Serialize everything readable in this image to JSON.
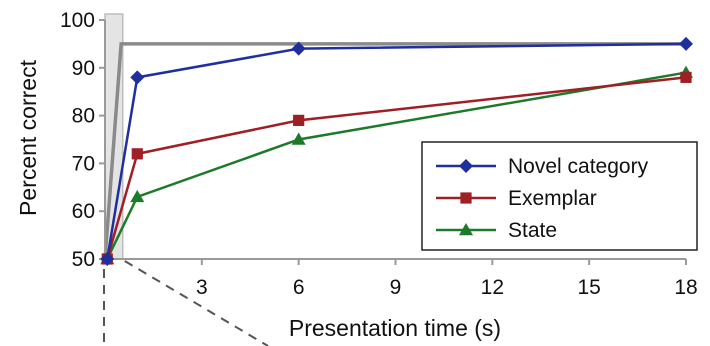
{
  "chart_data": {
    "type": "line",
    "xlabel": "Presentation time (s)",
    "ylabel": "Percent correct",
    "xlim": [
      0,
      18
    ],
    "ylim": [
      50,
      100
    ],
    "xticks": [
      "3",
      "6",
      "9",
      "12",
      "15",
      "18"
    ],
    "yticks": [
      "50",
      "60",
      "70",
      "80",
      "90",
      "100"
    ],
    "grid": false,
    "legend_position": "bottom-right",
    "series": [
      {
        "name": "Novel category",
        "color": "#1f2f9e",
        "marker": "diamond",
        "x": [
          0.07,
          1,
          6,
          18
        ],
        "values": [
          50,
          88,
          94,
          95
        ]
      },
      {
        "name": "Exemplar",
        "color": "#9e1f24",
        "marker": "square",
        "x": [
          0.07,
          1,
          6,
          18
        ],
        "values": [
          50,
          72,
          79,
          88
        ]
      },
      {
        "name": "State",
        "color": "#1d7a2a",
        "marker": "triangle",
        "x": [
          0.07,
          1,
          6,
          18
        ],
        "values": [
          50,
          63,
          75,
          89
        ]
      }
    ],
    "reference_line": {
      "color": "#8a8a8a",
      "x": [
        0,
        0.5,
        18
      ],
      "values": [
        50,
        95,
        95
      ]
    },
    "highlight_band": {
      "x": [
        0,
        0.55
      ],
      "color": "#e4e4e4"
    }
  }
}
